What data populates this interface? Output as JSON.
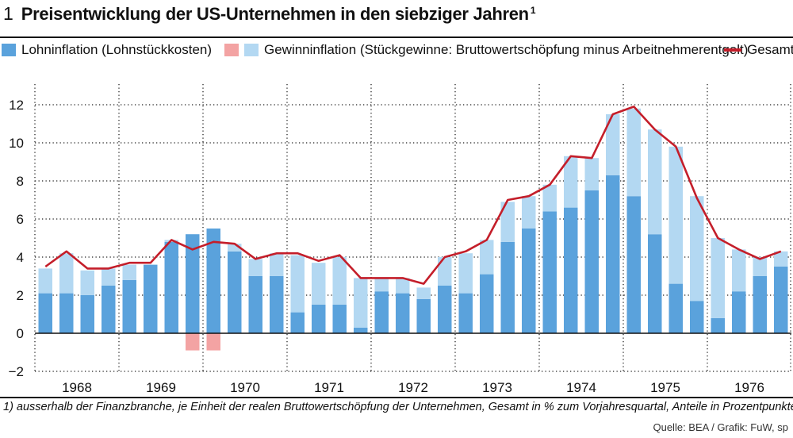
{
  "header": {
    "figure_number": "1",
    "title": "Preisentwicklung der US-Unternehmen in den siebziger Jahren",
    "title_footnote_mark": "1"
  },
  "legend": {
    "wage": "Lohninflation (Lohnstückkosten)",
    "profit": "Gewinninflation (Stückgewinne: Bruttowertschöpfung minus Arbeitnehmerentgelt)",
    "total": "Gesamt"
  },
  "colors": {
    "wage": "#5aa2dc",
    "profit_positive": "#b3d8f2",
    "profit_negative": "#f3a3a3",
    "total": "#c41e2a"
  },
  "chart_data": {
    "type": "bar",
    "stacked": true,
    "title": "Preisentwicklung der US-Unternehmen in den siebziger Jahren",
    "xlabel": "",
    "ylabel": "% zum Vorjahresquartal",
    "ylim": [
      -2,
      13
    ],
    "yticks": [
      -2,
      0,
      2,
      4,
      6,
      8,
      10,
      12
    ],
    "grid": "dotted, vertical at year boundaries and horizontal at y-ticks",
    "year_labels": [
      "1968",
      "1969",
      "1970",
      "1971",
      "1972",
      "1973",
      "1974",
      "1975",
      "1976"
    ],
    "quarters_per_year": 4,
    "categories": [
      "1968-Q1",
      "1968-Q2",
      "1968-Q3",
      "1968-Q4",
      "1969-Q1",
      "1969-Q2",
      "1969-Q3",
      "1969-Q4",
      "1970-Q1",
      "1970-Q2",
      "1970-Q3",
      "1970-Q4",
      "1971-Q1",
      "1971-Q2",
      "1971-Q3",
      "1971-Q4",
      "1972-Q1",
      "1972-Q2",
      "1972-Q3",
      "1972-Q4",
      "1973-Q1",
      "1973-Q2",
      "1973-Q3",
      "1973-Q4",
      "1974-Q1",
      "1974-Q2",
      "1974-Q3",
      "1974-Q4",
      "1975-Q1",
      "1975-Q2",
      "1975-Q3",
      "1975-Q4",
      "1976-Q1",
      "1976-Q2",
      "1976-Q3",
      "1976-Q4"
    ],
    "series": [
      {
        "name": "Lohninflation (Lohnstückkosten)",
        "kind": "bar",
        "values": [
          2.1,
          2.1,
          2.0,
          2.5,
          2.8,
          3.6,
          4.8,
          5.2,
          5.5,
          4.3,
          3.0,
          3.0,
          1.1,
          1.5,
          1.5,
          0.3,
          2.2,
          2.1,
          1.8,
          2.5,
          2.1,
          3.1,
          4.8,
          5.5,
          6.4,
          6.6,
          7.5,
          8.3,
          7.2,
          5.2,
          2.6,
          1.7,
          0.8,
          2.2,
          3.0,
          3.5
        ]
      },
      {
        "name": "Gewinninflation (Stückgewinne: Bruttowertschöpfung minus Arbeitnehmerentgelt)",
        "kind": "bar",
        "values": [
          1.3,
          2.1,
          1.3,
          0.9,
          0.8,
          0.0,
          0.1,
          -0.9,
          -0.9,
          0.4,
          0.9,
          1.2,
          3.0,
          2.2,
          2.5,
          2.6,
          0.7,
          0.8,
          0.6,
          1.5,
          2.1,
          1.8,
          2.1,
          1.7,
          1.4,
          2.7,
          1.7,
          3.2,
          4.6,
          5.5,
          7.2,
          5.5,
          4.2,
          2.2,
          1.0,
          0.8
        ]
      },
      {
        "name": "Gesamt",
        "kind": "line",
        "values": [
          3.5,
          4.3,
          3.4,
          3.4,
          3.7,
          3.7,
          4.9,
          4.4,
          4.8,
          4.7,
          3.9,
          4.2,
          4.2,
          3.8,
          4.1,
          2.9,
          2.9,
          2.9,
          2.6,
          4.0,
          4.3,
          4.9,
          7.0,
          7.2,
          7.8,
          9.3,
          9.2,
          11.5,
          11.9,
          10.7,
          9.8,
          7.1,
          5.0,
          4.4,
          3.9,
          4.3
        ]
      }
    ]
  },
  "footnote": "1) ausserhalb der Finanzbranche, je Einheit der realen Bruttowertschöpfung der Unternehmen, Gesamt in % zum Vorjahresquartal, Anteile in Prozentpunkten",
  "source": "Quelle: BEA / Grafik: FuW, sp"
}
